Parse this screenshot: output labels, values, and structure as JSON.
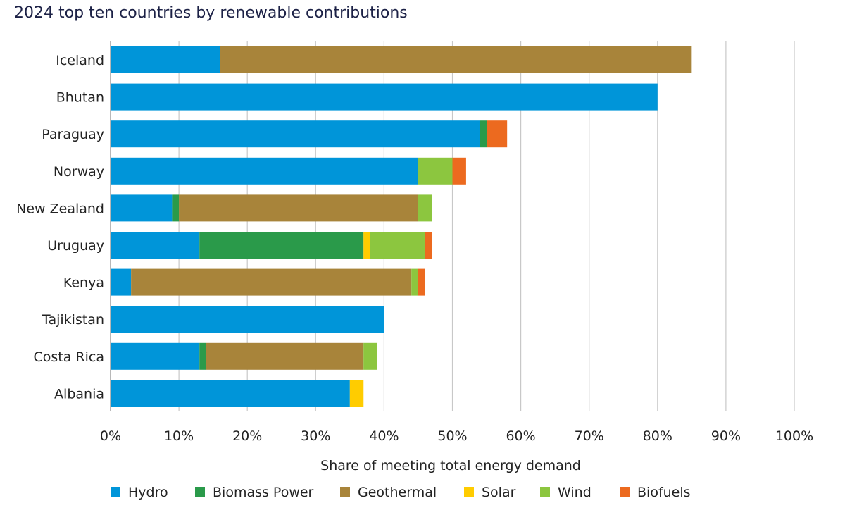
{
  "chart_data": {
    "type": "bar",
    "orientation": "horizontal",
    "stacked": true,
    "title": "2024 top ten countries by renewable contributions",
    "xlabel": "Share of meeting total energy demand",
    "ylabel": "",
    "xlim": [
      0,
      100
    ],
    "x_ticks": [
      "0%",
      "10%",
      "20%",
      "30%",
      "40%",
      "50%",
      "60%",
      "70%",
      "80%",
      "90%",
      "100%"
    ],
    "grid": "vertical",
    "legend_position": "bottom",
    "categories": [
      "Iceland",
      "Bhutan",
      "Paraguay",
      "Norway",
      "New Zealand",
      "Uruguay",
      "Kenya",
      "Tajikistan",
      "Costa Rica",
      "Albania"
    ],
    "series": [
      {
        "name": "Hydro",
        "color": "#0095d9",
        "values": [
          16,
          80,
          54,
          45,
          9,
          13,
          3,
          40,
          13,
          35
        ]
      },
      {
        "name": "Biomass Power",
        "color": "#2a9a4a",
        "values": [
          0,
          0,
          1,
          0,
          1,
          24,
          0,
          0,
          1,
          0
        ]
      },
      {
        "name": "Geothermal",
        "color": "#a8843a",
        "values": [
          69,
          0,
          0,
          0,
          35,
          0,
          41,
          0,
          23,
          0
        ]
      },
      {
        "name": "Solar",
        "color": "#ffcc00",
        "values": [
          0,
          0,
          0,
          0,
          0,
          1,
          0,
          0,
          0,
          2
        ]
      },
      {
        "name": "Wind",
        "color": "#8cc63f",
        "values": [
          0,
          0,
          0,
          5,
          2,
          8,
          1,
          0,
          2,
          0
        ]
      },
      {
        "name": "Biofuels",
        "color": "#ec6a1f",
        "values": [
          0,
          0,
          3,
          2,
          0,
          1,
          1,
          0,
          0,
          0
        ]
      }
    ]
  }
}
